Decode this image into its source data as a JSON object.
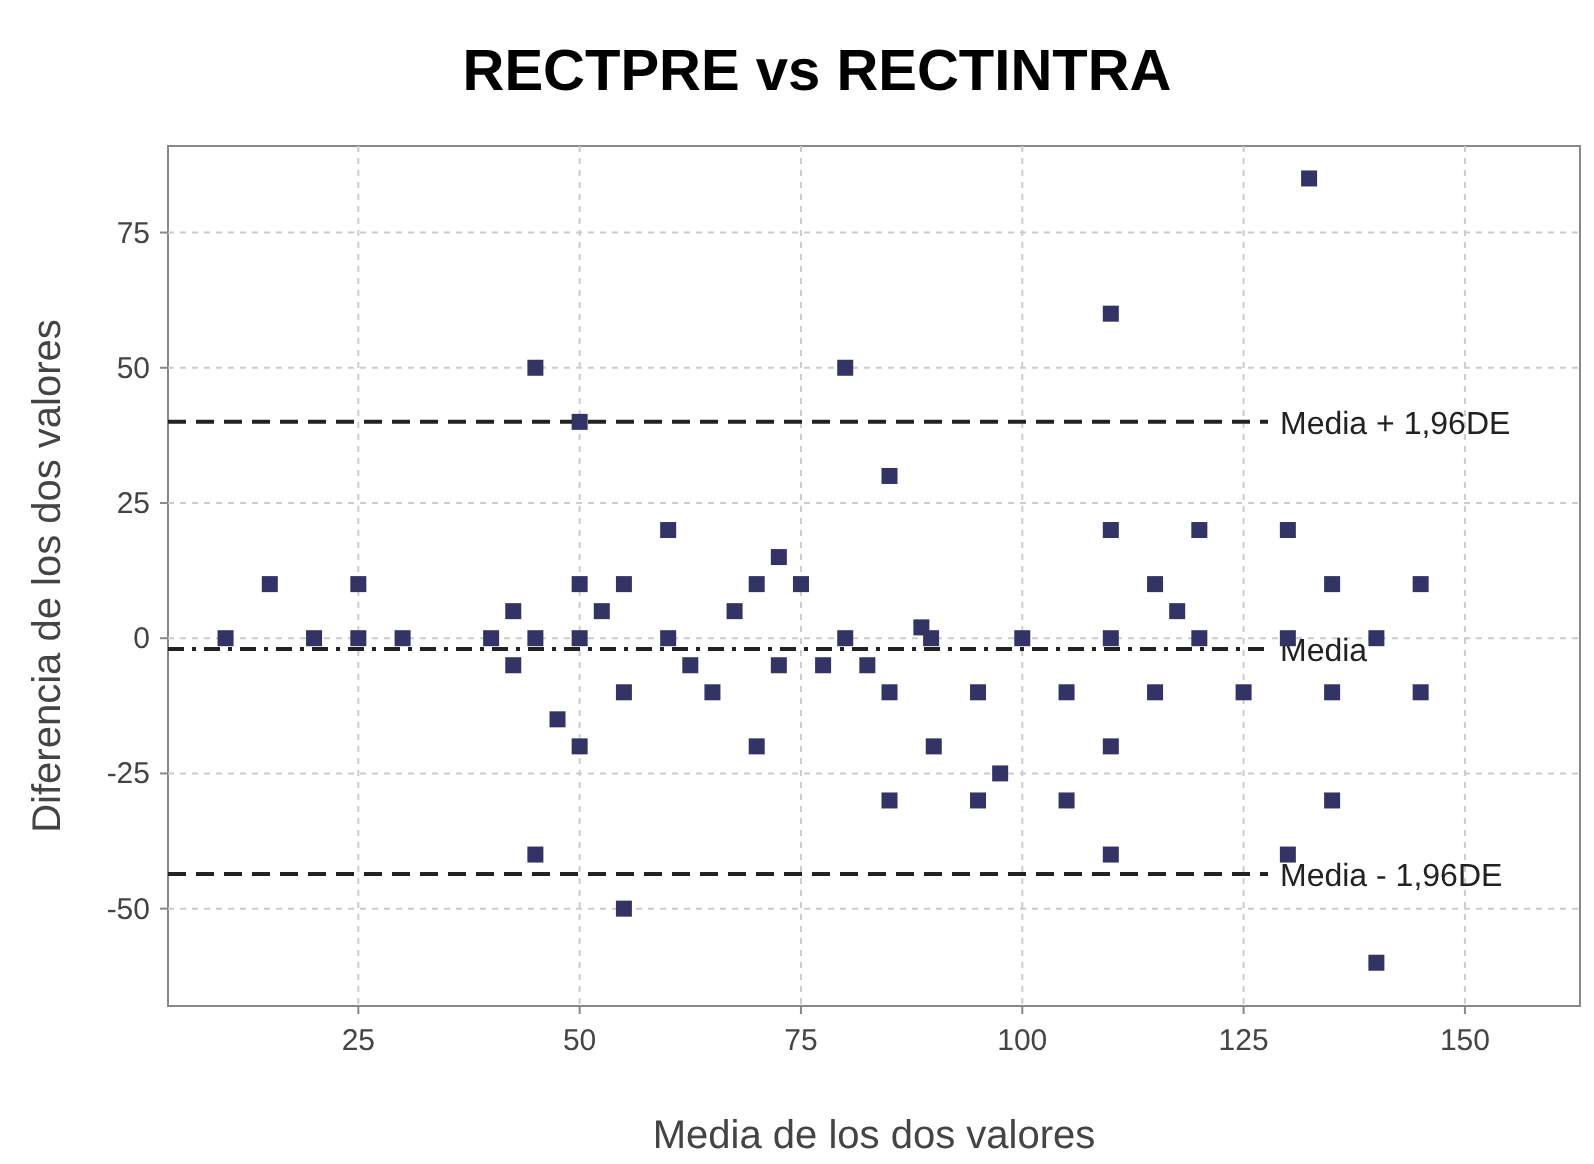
{
  "chart_data": {
    "type": "scatter",
    "title": "RECTPRE vs RECTINTRA",
    "xlabel": "Media de los dos valores",
    "ylabel": "Diferencia de los dos valores",
    "xlim": [
      3.5,
      163
    ],
    "ylim": [
      -68,
      91
    ],
    "xticks": [
      25,
      50,
      75,
      100,
      125,
      150
    ],
    "yticks": [
      -50,
      -25,
      0,
      25,
      50,
      75
    ],
    "grid": true,
    "marker": "square",
    "series": [
      {
        "color": "#333366",
        "x": [
          10,
          15,
          20,
          25,
          25,
          30,
          40,
          42.5,
          42.5,
          45,
          45,
          45,
          47.5,
          50,
          50,
          50,
          50,
          52.5,
          55,
          55,
          55,
          60,
          60,
          62.5,
          65,
          67.5,
          70,
          70,
          72.5,
          72.5,
          75,
          77.5,
          80,
          80,
          82.5,
          85,
          85,
          85,
          88.6,
          89.7,
          90,
          95,
          95,
          97.5,
          100,
          105,
          105,
          110,
          110,
          110,
          110,
          110,
          115,
          115,
          117.5,
          120,
          120,
          125,
          130,
          130,
          130,
          132.4,
          135,
          135,
          135,
          140,
          140,
          145,
          145
        ],
        "values": [
          0,
          10,
          0,
          10,
          0,
          0,
          0,
          5,
          -5,
          50,
          0,
          -40,
          -15,
          40,
          10,
          0,
          -20,
          5,
          10,
          -10,
          -50,
          20,
          0,
          -5,
          -10,
          5,
          10,
          -20,
          15,
          -5,
          10,
          -5,
          50,
          0,
          -5,
          30,
          -10,
          -30,
          2,
          0,
          -20,
          -10,
          -30,
          -25,
          0,
          -10,
          -30,
          60,
          20,
          0,
          -20,
          -40,
          10,
          -10,
          5,
          20,
          0,
          -10,
          20,
          0,
          -40,
          85,
          10,
          -10,
          -30,
          0,
          -60,
          10,
          -10
        ]
      }
    ],
    "ref_lines": [
      {
        "axis": "y",
        "value": 40,
        "label": "Media + 1,96DE",
        "line_style": "dashed"
      },
      {
        "axis": "y",
        "value": -2,
        "label": "Media",
        "line_style": "dashdot"
      },
      {
        "axis": "y",
        "value": -43.6,
        "label": "Media - 1,96DE",
        "line_style": "dashed"
      }
    ]
  }
}
